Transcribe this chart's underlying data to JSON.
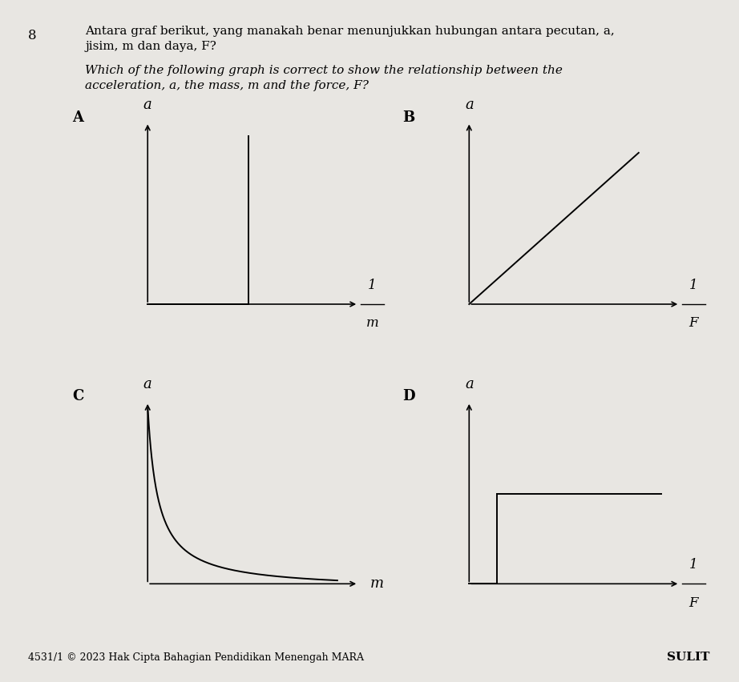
{
  "background_color": "#e8e6e2",
  "title_number": "8",
  "title_malay_line1": "Antara graf berikut, yang manakah benar menunjukkan hubungan antara pecutan, a,",
  "title_malay_line2": "jisim, m dan daya, F?",
  "title_eng_line1": "Which of the following graph is correct to show the relationship between the",
  "title_eng_line2": "acceleration, a, the mass, m and the force, F?",
  "footer_left": "4531/1 © 2023 Hak Cipta Bahagian Pendidikan Menengah MARA",
  "footer_right": "SULIT",
  "labels": [
    "A",
    "B",
    "C",
    "D"
  ],
  "xlabels": [
    "1/m",
    "1/F",
    "m",
    "1/F"
  ],
  "ylabels": [
    "a",
    "a",
    "a",
    "a"
  ]
}
